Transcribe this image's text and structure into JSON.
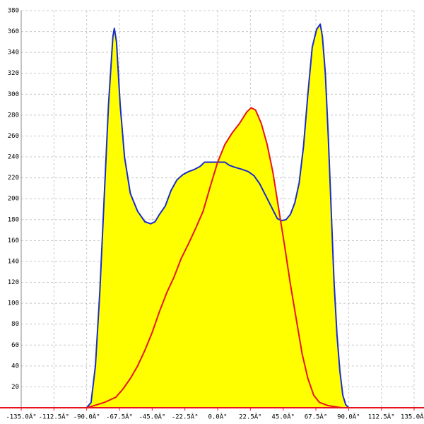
{
  "chart_data": {
    "type": "line",
    "xlim": [
      -135,
      135
    ],
    "ylim": [
      0,
      380
    ],
    "grid": true,
    "xticks": [
      {
        "value": -135,
        "label": "-135.0Â°"
      },
      {
        "value": -112.5,
        "label": "-112.5Â°"
      },
      {
        "value": -90,
        "label": "-90.0Â°"
      },
      {
        "value": -67.5,
        "label": "-67.5Â°"
      },
      {
        "value": -45,
        "label": "-45.0Â°"
      },
      {
        "value": -22.5,
        "label": "-22.5Â°"
      },
      {
        "value": 0,
        "label": "0.0Â°"
      },
      {
        "value": 22.5,
        "label": "22.5Â°"
      },
      {
        "value": 45,
        "label": "45.0Â°"
      },
      {
        "value": 67.5,
        "label": "67.5Â°"
      },
      {
        "value": 90,
        "label": "90.0Â°"
      },
      {
        "value": 112.5,
        "label": "112.5Â°"
      },
      {
        "value": 135,
        "label": "135.0Â°"
      }
    ],
    "yticks": [
      20,
      40,
      60,
      80,
      100,
      120,
      140,
      160,
      180,
      200,
      220,
      240,
      260,
      280,
      300,
      320,
      340,
      360,
      380
    ],
    "series": [
      {
        "color": "#1a2ccc",
        "fill": "#ffff00",
        "x": [
          -90,
          -87,
          -84,
          -81,
          -78,
          -75,
          -72,
          -71,
          -69.5,
          -67,
          -64,
          -60,
          -55,
          -50,
          -46,
          -43,
          -40,
          -36,
          -32,
          -28,
          -24,
          -20,
          -16,
          -12,
          -9,
          -5,
          0,
          5,
          8,
          12,
          17,
          21,
          25,
          29,
          33,
          37,
          41,
          44,
          47,
          50,
          53,
          56,
          59,
          62,
          65,
          68,
          70.5,
          72,
          74,
          76,
          78,
          80,
          82,
          84,
          86,
          88,
          90
        ],
        "values": [
          0,
          5,
          40,
          110,
          200,
          290,
          355,
          363,
          350,
          290,
          240,
          205,
          188,
          178,
          176,
          178,
          185,
          193,
          208,
          218,
          223,
          226,
          228,
          231,
          235,
          235,
          235,
          235,
          232,
          230,
          228,
          226,
          222,
          214,
          203,
          192,
          181,
          179,
          180,
          185,
          196,
          215,
          250,
          300,
          345,
          362,
          367,
          355,
          320,
          260,
          190,
          120,
          70,
          35,
          12,
          3,
          0
        ]
      },
      {
        "color": "#e8141c",
        "fill": "#ffff00",
        "x": [
          -90,
          -85,
          -78,
          -70,
          -65,
          -60,
          -55,
          -50,
          -45,
          -40,
          -35,
          -30,
          -25,
          -20,
          -15,
          -10,
          -5,
          0,
          5,
          10,
          15,
          20,
          23,
          26,
          30,
          34,
          38,
          42,
          46,
          50,
          54,
          58,
          62,
          66,
          70,
          76,
          85
        ],
        "values": [
          0,
          2,
          5,
          10,
          18,
          28,
          40,
          55,
          72,
          92,
          110,
          125,
          143,
          157,
          172,
          188,
          212,
          235,
          252,
          263,
          272,
          283,
          287,
          285,
          272,
          252,
          225,
          190,
          155,
          118,
          85,
          52,
          28,
          12,
          5,
          2,
          0
        ]
      }
    ]
  }
}
